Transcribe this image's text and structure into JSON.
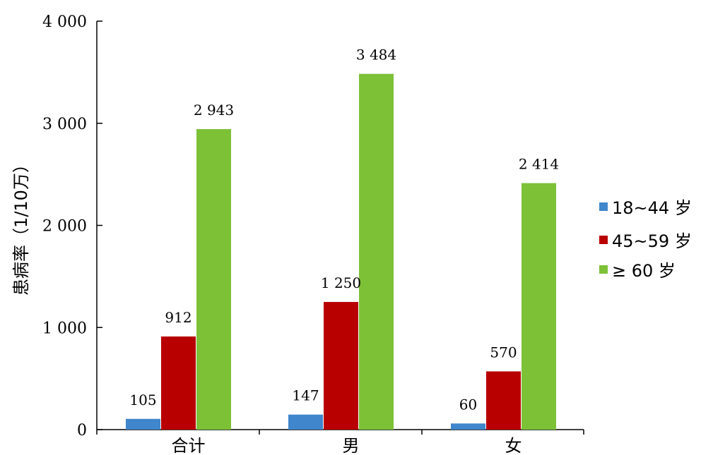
{
  "chart_data": {
    "type": "bar",
    "ylabel": "患病率（1/10万）",
    "xlabel": "",
    "ylim": [
      0,
      4000
    ],
    "yticks": [
      0,
      1000,
      2000,
      3000,
      4000
    ],
    "ytick_labels": [
      "0",
      "1 000",
      "2 000",
      "3 000",
      "4 000"
    ],
    "categories": [
      "合计",
      "男",
      "女"
    ],
    "series": [
      {
        "name": "18~44 岁",
        "color": "#3f86cc",
        "values": [
          105,
          147,
          60
        ],
        "labels": [
          "105",
          "147",
          "60"
        ]
      },
      {
        "name": "45~59 岁",
        "color": "#b90000",
        "values": [
          912,
          1250,
          570
        ],
        "labels": [
          "912",
          "1 250",
          "570"
        ]
      },
      {
        "name": "≥ 60 岁",
        "color": "#7dc137",
        "values": [
          2943,
          3484,
          2414
        ],
        "labels": [
          "2 943",
          "3 484",
          "2 414"
        ]
      }
    ],
    "legend_position": "right",
    "grid": false
  }
}
